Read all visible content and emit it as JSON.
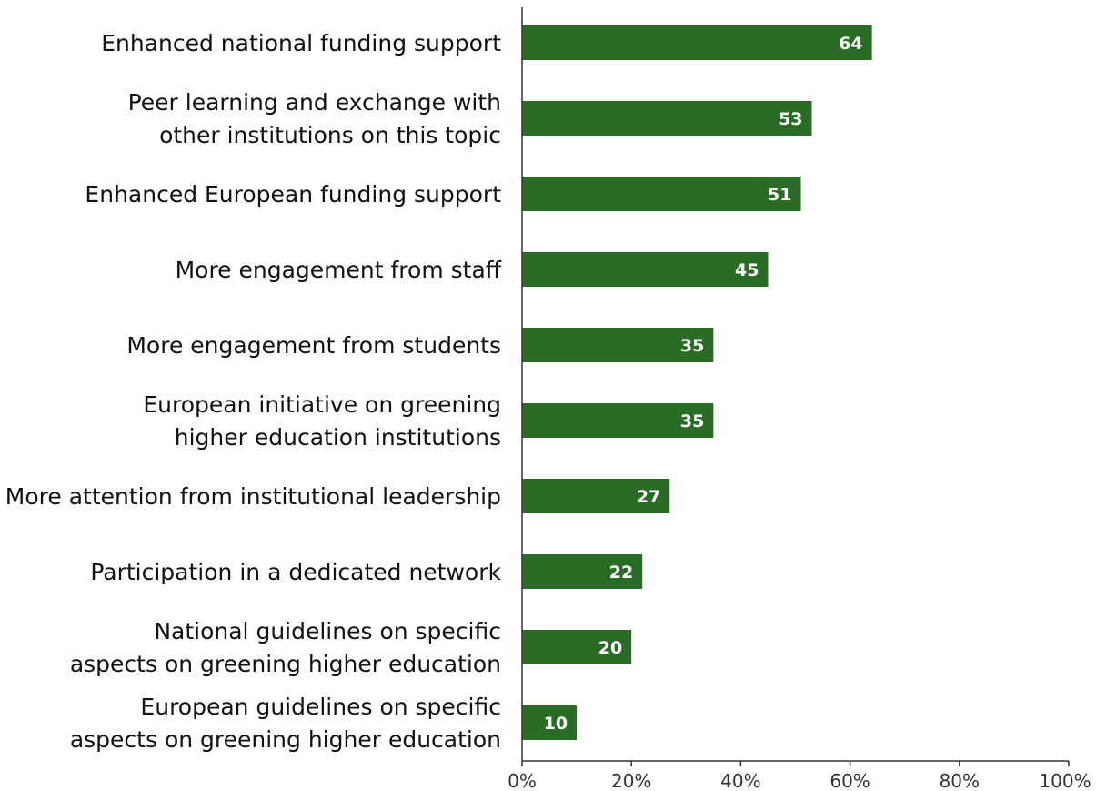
{
  "chart_data": {
    "type": "bar",
    "orientation": "horizontal",
    "categories": [
      "Enhanced national funding support",
      "Peer learning and exchange with other institutions on this topic",
      "Enhanced European funding support",
      "More engagement from staff",
      "More engagement from students",
      "European initiative on greening higher education institutions",
      "More attention from institutional leadership",
      "Participation in a dedicated network",
      "National guidelines on specific aspects on greening higher education",
      "European guidelines on specific aspects on greening higher education"
    ],
    "category_lines": [
      [
        "Enhanced national funding support"
      ],
      [
        "Peer learning and exchange with",
        "other institutions on this topic"
      ],
      [
        "Enhanced European funding support"
      ],
      [
        "More engagement from staff"
      ],
      [
        "More engagement from students"
      ],
      [
        "European initiative on greening",
        "higher education institutions"
      ],
      [
        "More attention from institutional leadership"
      ],
      [
        "Participation in a dedicated network"
      ],
      [
        "National guidelines on specific",
        "aspects on greening higher education"
      ],
      [
        "European guidelines on specific",
        "aspects on greening higher education"
      ]
    ],
    "values": [
      64,
      53,
      51,
      45,
      35,
      35,
      27,
      22,
      20,
      10
    ],
    "value_labels": [
      "64",
      "53",
      "51",
      "45",
      "35",
      "35",
      "27",
      "22",
      "20",
      "10"
    ],
    "xlim": [
      0,
      100
    ],
    "xticks": [
      0,
      20,
      40,
      60,
      80,
      100
    ],
    "xtick_labels": [
      "0%",
      "20%",
      "40%",
      "60%",
      "80%",
      "100%"
    ],
    "title": "",
    "xlabel": "",
    "ylabel": "",
    "grid": false,
    "bar_color": "#2a6b26"
  }
}
